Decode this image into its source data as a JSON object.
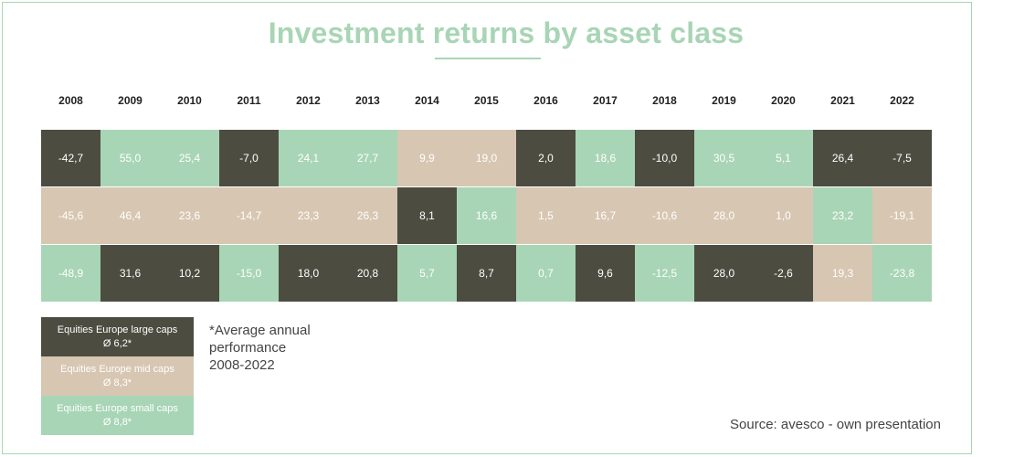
{
  "chart_data": {
    "type": "table",
    "title": "Investment returns by asset class",
    "years": [
      "2008",
      "2009",
      "2010",
      "2011",
      "2012",
      "2013",
      "2014",
      "2015",
      "2016",
      "2017",
      "2018",
      "2019",
      "2020",
      "2021",
      "2022"
    ],
    "series": [
      {
        "name": "Equities Europe large caps",
        "avg": "Ø 6,2*",
        "color": "#4d4c41"
      },
      {
        "name": "Equities Europe mid caps",
        "avg": "Ø 8,3*",
        "color": "#d7c6b2"
      },
      {
        "name": "Equities Europe small caps",
        "avg": "Ø 8,8*",
        "color": "#a8d5b5"
      }
    ],
    "rows": [
      {
        "values": [
          "-42,7",
          "55,0",
          "25,4",
          "-7,0",
          "24,1",
          "27,7",
          "9,9",
          "19,0",
          "2,0",
          "18,6",
          "-10,0",
          "30,5",
          "5,1",
          "26,4",
          "-7,5"
        ],
        "classes": [
          0,
          2,
          2,
          0,
          2,
          2,
          1,
          1,
          0,
          2,
          0,
          2,
          2,
          0,
          0
        ]
      },
      {
        "values": [
          "-45,6",
          "46,4",
          "23,6",
          "-14,7",
          "23,3",
          "26,3",
          "8,1",
          "16,6",
          "1,5",
          "16,7",
          "-10,6",
          "28,0",
          "1,0",
          "23,2",
          "-19,1"
        ],
        "classes": [
          1,
          1,
          1,
          1,
          1,
          1,
          0,
          2,
          1,
          1,
          1,
          1,
          1,
          2,
          1
        ]
      },
      {
        "values": [
          "-48,9",
          "31,6",
          "10,2",
          "-15,0",
          "18,0",
          "20,8",
          "5,7",
          "8,7",
          "0,7",
          "9,6",
          "-12,5",
          "28,0",
          "-2,6",
          "19,3",
          "-23,8"
        ],
        "classes": [
          2,
          0,
          0,
          2,
          0,
          0,
          2,
          0,
          2,
          0,
          2,
          0,
          0,
          1,
          2
        ]
      }
    ]
  },
  "footnote": [
    "*Average annual",
    "performance",
    "2008-2022"
  ],
  "source": "Source: avesco - own presentation"
}
